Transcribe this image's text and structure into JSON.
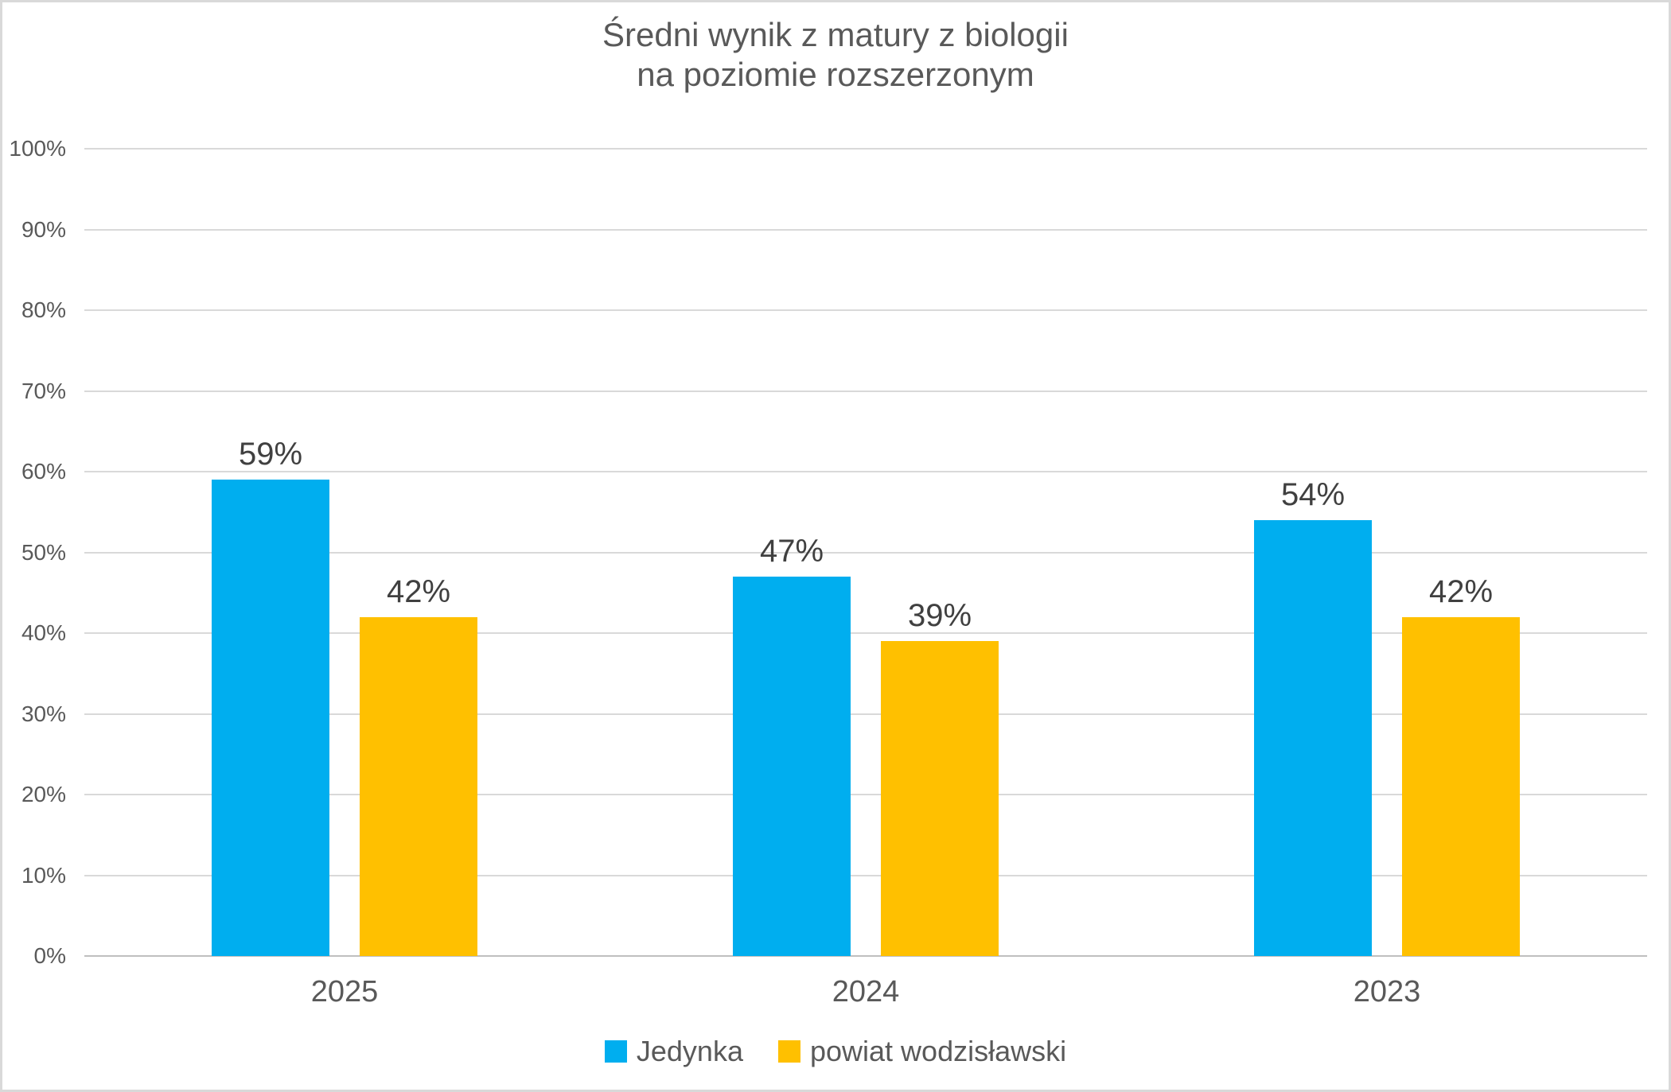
{
  "chart_data": {
    "type": "bar",
    "title_lines": [
      "Średni wynik z matury z biologii",
      "na poziomie rozszerzonym"
    ],
    "title": "Średni wynik z matury z biologii na poziomie rozszerzonym",
    "categories": [
      "2025",
      "2024",
      "2023"
    ],
    "series": [
      {
        "name": "Jedynka",
        "color": "#00AEEF",
        "values": [
          59,
          47,
          54
        ]
      },
      {
        "name": "powiat wodzisławski",
        "color": "#FFC000",
        "values": [
          42,
          39,
          42
        ]
      }
    ],
    "value_suffix": "%",
    "data_labels": [
      [
        "59%",
        "47%",
        "54%"
      ],
      [
        "42%",
        "39%",
        "42%"
      ]
    ],
    "y_ticks": [
      "0%",
      "10%",
      "20%",
      "30%",
      "40%",
      "50%",
      "60%",
      "70%",
      "80%",
      "90%",
      "100%"
    ],
    "ylim": [
      0,
      100
    ],
    "xlabel": "",
    "ylabel": "",
    "grid": true,
    "legend_position": "bottom",
    "colors": {
      "title_text": "#595959",
      "axis_label_text": "#595959",
      "data_label_text": "#404040",
      "gridline": "#D9D9D9",
      "axis_line": "#BFBFBF",
      "background": "#FFFFFF",
      "frame_border": "#D9D9D9"
    }
  }
}
